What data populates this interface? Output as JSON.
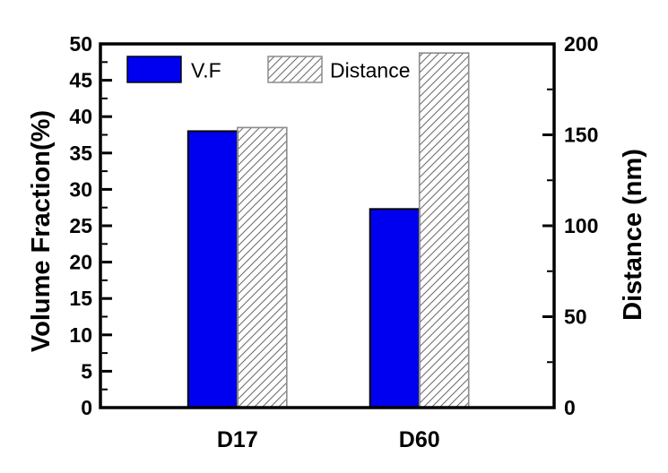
{
  "figure": {
    "background": "#ffffff"
  },
  "chart_data": {
    "type": "bar",
    "categories": [
      "D17",
      "D60"
    ],
    "series": [
      {
        "name": "V.F",
        "axis": "left",
        "values": [
          38.0,
          27.3
        ],
        "fill": "solid-blue"
      },
      {
        "name": "Distance",
        "axis": "right",
        "values": [
          154,
          195
        ],
        "fill": "hatched-diagonal"
      }
    ],
    "left_axis": {
      "label": "Volume Fraction(%)",
      "min": 0,
      "max": 50,
      "major_step": 5,
      "minor_step": 2.5,
      "tick_labels": [
        "0",
        "5",
        "10",
        "15",
        "20",
        "25",
        "30",
        "35",
        "40",
        "45",
        "50"
      ]
    },
    "right_axis": {
      "label": "Distance (nm)",
      "min": 0,
      "max": 200,
      "major_step": 50,
      "minor_step": 25,
      "tick_labels": [
        "0",
        "50",
        "100",
        "150",
        "200"
      ]
    },
    "x_axis": {
      "tick_labels": [
        "D17",
        "D60"
      ]
    },
    "legend": {
      "position": "inside-top-left",
      "entries": [
        {
          "label": "V.F",
          "swatch": "solid-blue"
        },
        {
          "label": "Distance",
          "swatch": "hatched-diagonal"
        }
      ]
    },
    "grid": false,
    "title": "",
    "colors": {
      "bar_fill": "#0000F0",
      "bar_border": "#000000",
      "hatch_line": "#6f6f6f",
      "hatch_border": "#8c8c8c",
      "frame": "#000000",
      "text": "#000000"
    }
  }
}
